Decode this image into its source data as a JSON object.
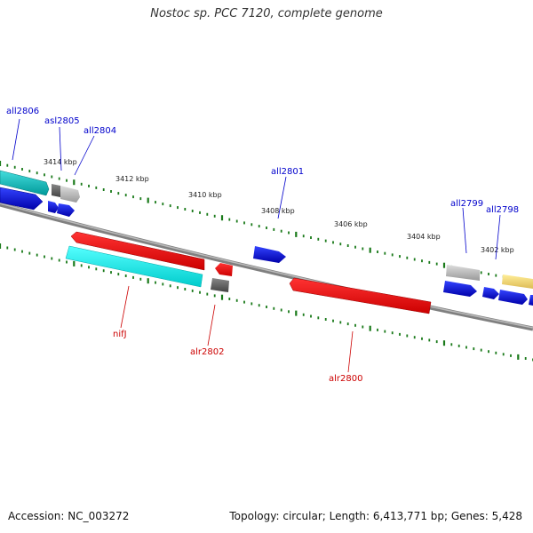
{
  "title": "Nostoc sp. PCC 7120, complete genome",
  "footer": {
    "accession": "Accession: NC_003272",
    "topology": "Topology: circular; Length: 6,413,771 bp; Genes: 5,428"
  },
  "colors": {
    "forward_gene_label": "#0000cc",
    "reverse_gene_label": "#cc0000",
    "tick": "#1a7a1a",
    "backbone": "#777777"
  },
  "scale_labels": [
    "3414 kbp",
    "3412 kbp",
    "3410 kbp",
    "3408 kbp",
    "3406 kbp",
    "3404 kbp",
    "3402 kbp"
  ],
  "gene_labels": {
    "forward": [
      "all2806",
      "asl2805",
      "all2804",
      "all2801",
      "all2799",
      "all2798"
    ],
    "reverse": [
      "nifJ",
      "alr2802",
      "alr2800"
    ]
  }
}
